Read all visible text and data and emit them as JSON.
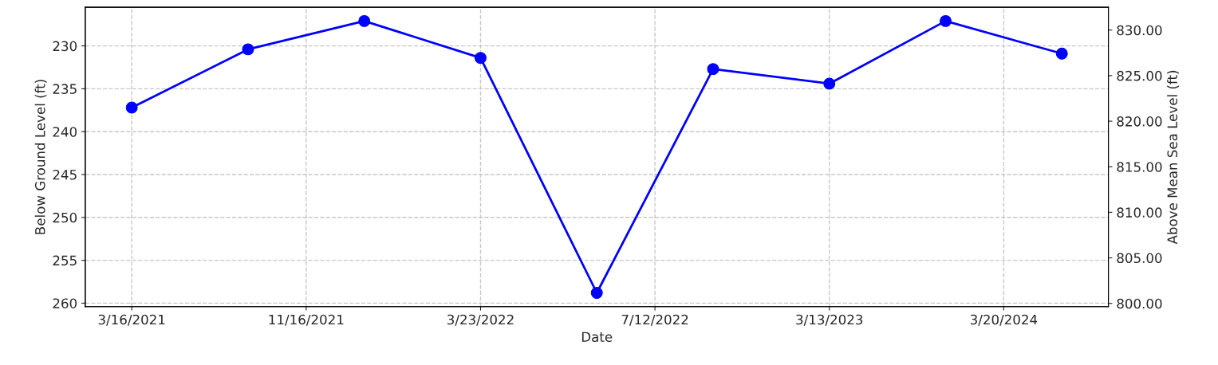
{
  "chart_data": {
    "type": "line",
    "xlabel": "Date",
    "ylabel": "Below Ground Level (ft)",
    "y2label": "Above Mean Sea Level (ft)",
    "categories": [
      "3/16/2021",
      null,
      null,
      "11/16/2021",
      null,
      null,
      "3/23/2022",
      null,
      null,
      "7/12/2022",
      null,
      null,
      "3/13/2023",
      null,
      null,
      "3/20/2024",
      null
    ],
    "series": [
      {
        "color": "#0000ff",
        "values": [
          237.2,
          null,
          230.4,
          null,
          227.1,
          null,
          231.4,
          null,
          258.8,
          null,
          232.7,
          null,
          234.4,
          null,
          227.1,
          null,
          230.9
        ]
      }
    ],
    "ylim": [
      260.4,
      225.5
    ],
    "yticks": [
      230,
      235,
      240,
      245,
      250,
      255,
      260
    ],
    "y2lim": [
      799.65,
      832.5
    ],
    "y2ticks": [
      {
        "value": 800,
        "label": "800.00"
      },
      {
        "value": 805,
        "label": "805.00"
      },
      {
        "value": 810,
        "label": "810.00"
      },
      {
        "value": 815,
        "label": "815.00"
      },
      {
        "value": 820,
        "label": "820.00"
      },
      {
        "value": 825,
        "label": "825.00"
      },
      {
        "value": 830,
        "label": "830.00"
      }
    ],
    "grid": true,
    "marker": "circle",
    "line_style": "solid"
  }
}
